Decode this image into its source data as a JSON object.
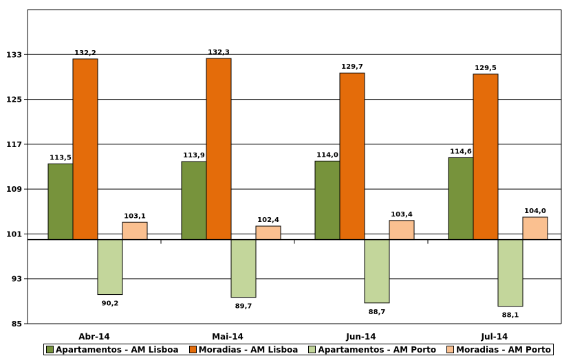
{
  "chart_data": {
    "type": "bar",
    "categories": [
      "Abr-14",
      "Mai-14",
      "Jun-14",
      "Jul-14"
    ],
    "series": [
      {
        "name": "Apartamentos - AM Lisboa",
        "values": [
          113.5,
          113.9,
          114.0,
          114.6
        ],
        "labels": [
          "113,5",
          "113,9",
          "114,0",
          "114,6"
        ],
        "color": "#77933C"
      },
      {
        "name": "Moradias - AM Lisboa",
        "values": [
          132.2,
          132.3,
          129.7,
          129.5
        ],
        "labels": [
          "132,2",
          "132,3",
          "129,7",
          "129,5"
        ],
        "color": "#E46C0A"
      },
      {
        "name": "Apartamentos - AM Porto",
        "values": [
          90.2,
          89.7,
          88.7,
          88.1
        ],
        "labels": [
          "90,2",
          "89,7",
          "88,7",
          "88,1"
        ],
        "color": "#C3D69B"
      },
      {
        "name": "Moradias - AM Porto",
        "values": [
          103.1,
          102.4,
          103.4,
          104.0
        ],
        "labels": [
          "103,1",
          "102,4",
          "103,4",
          "104,0"
        ],
        "color": "#FAC090"
      }
    ],
    "baseline": 100,
    "ylim": [
      85,
      141
    ],
    "yticks": [
      85,
      93,
      101,
      109,
      117,
      125,
      133
    ],
    "grid": true,
    "legend_position": "bottom"
  }
}
